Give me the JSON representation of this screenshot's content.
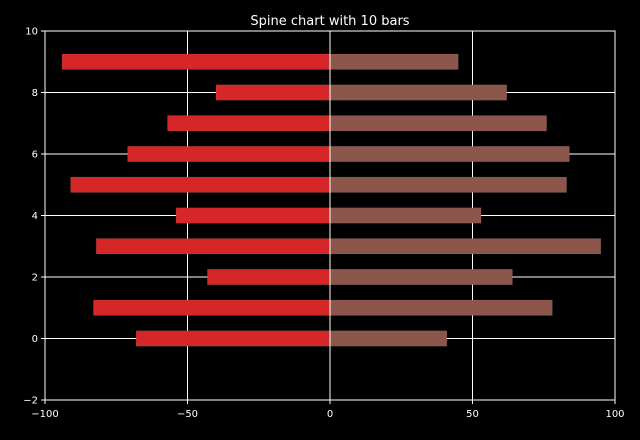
{
  "chart_data": {
    "type": "bar",
    "orientation": "horizontal",
    "title": "Spine chart with 10 bars",
    "xlabel": "",
    "ylabel": "",
    "xlim": [
      -100,
      100
    ],
    "ylim": [
      -2,
      10
    ],
    "grid": true,
    "categories": [
      0,
      1,
      2,
      3,
      4,
      5,
      6,
      7,
      8,
      9
    ],
    "x_ticks": [
      -100,
      -50,
      0,
      50,
      100
    ],
    "y_ticks": [
      -2,
      0,
      2,
      4,
      6,
      8,
      10
    ],
    "x_tick_labels": [
      "−100",
      "−50",
      "0",
      "50",
      "100"
    ],
    "y_tick_labels": [
      "−2",
      "0",
      "2",
      "4",
      "6",
      "8",
      "10"
    ],
    "series": [
      {
        "values": [
          -68,
          -83,
          -43,
          -82,
          -54,
          -91,
          -71,
          -57,
          -40,
          -94
        ],
        "color": "#d62728"
      },
      {
        "values": [
          41,
          78,
          64,
          95,
          53,
          83,
          84,
          76,
          62,
          45
        ],
        "color": "#8c564b"
      }
    ],
    "colors": {
      "background": "#000000",
      "axes": "#ffffff",
      "grid": "#ffffff"
    }
  }
}
